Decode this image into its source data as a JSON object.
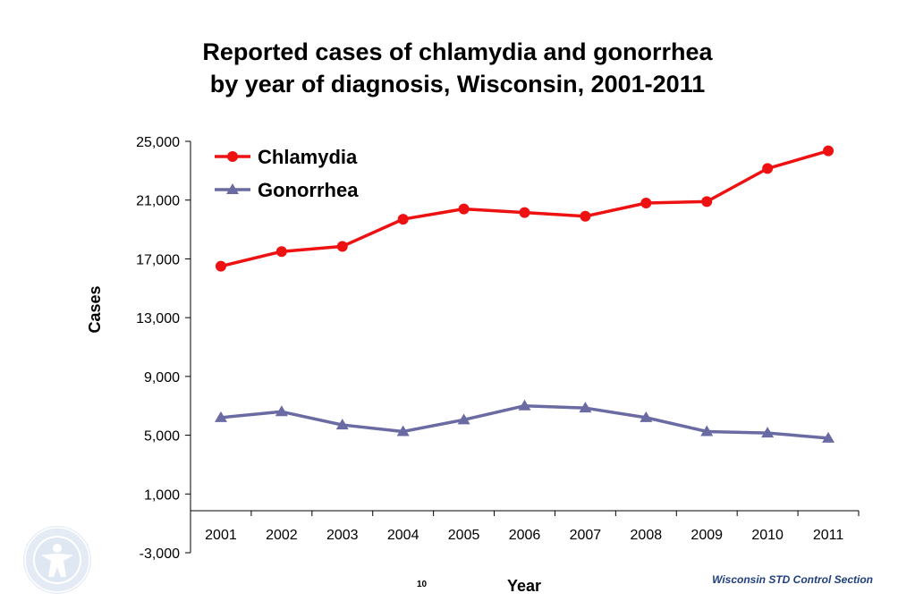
{
  "chart_data": {
    "type": "line",
    "title_lines": [
      "Reported cases of chlamydia and gonorrhea",
      "by year of diagnosis, Wisconsin, 2001-2011"
    ],
    "xlabel": "Year",
    "ylabel": "Cases",
    "categories": [
      "2001",
      "2002",
      "2003",
      "2004",
      "2005",
      "2006",
      "2007",
      "2008",
      "2009",
      "2010",
      "2011"
    ],
    "y_ticks": [
      {
        "value": -3000,
        "label": "-3,000"
      },
      {
        "value": 1000,
        "label": "1,000"
      },
      {
        "value": 5000,
        "label": "5,000"
      },
      {
        "value": 9000,
        "label": "9,000"
      },
      {
        "value": 13000,
        "label": "13,000"
      },
      {
        "value": 17000,
        "label": "17,000"
      },
      {
        "value": 21000,
        "label": "21,000"
      },
      {
        "value": 25000,
        "label": "25,000"
      }
    ],
    "ylim": [
      -3000,
      25000
    ],
    "grid": false,
    "legend_position": "top-left",
    "series": [
      {
        "name": "Chlamydia",
        "marker": "circle",
        "color": "#ee1111",
        "values": [
          16500,
          17500,
          17850,
          19700,
          20400,
          20150,
          19900,
          20800,
          20900,
          23150,
          24350
        ]
      },
      {
        "name": "Gonorrhea",
        "marker": "triangle",
        "color": "#6b6ba3",
        "values": [
          6200,
          6600,
          5700,
          5250,
          6050,
          7000,
          6850,
          6200,
          5250,
          5150,
          4800
        ]
      }
    ]
  },
  "footer": {
    "credit": "Wisconsin STD Control Section",
    "page_number": "10"
  }
}
